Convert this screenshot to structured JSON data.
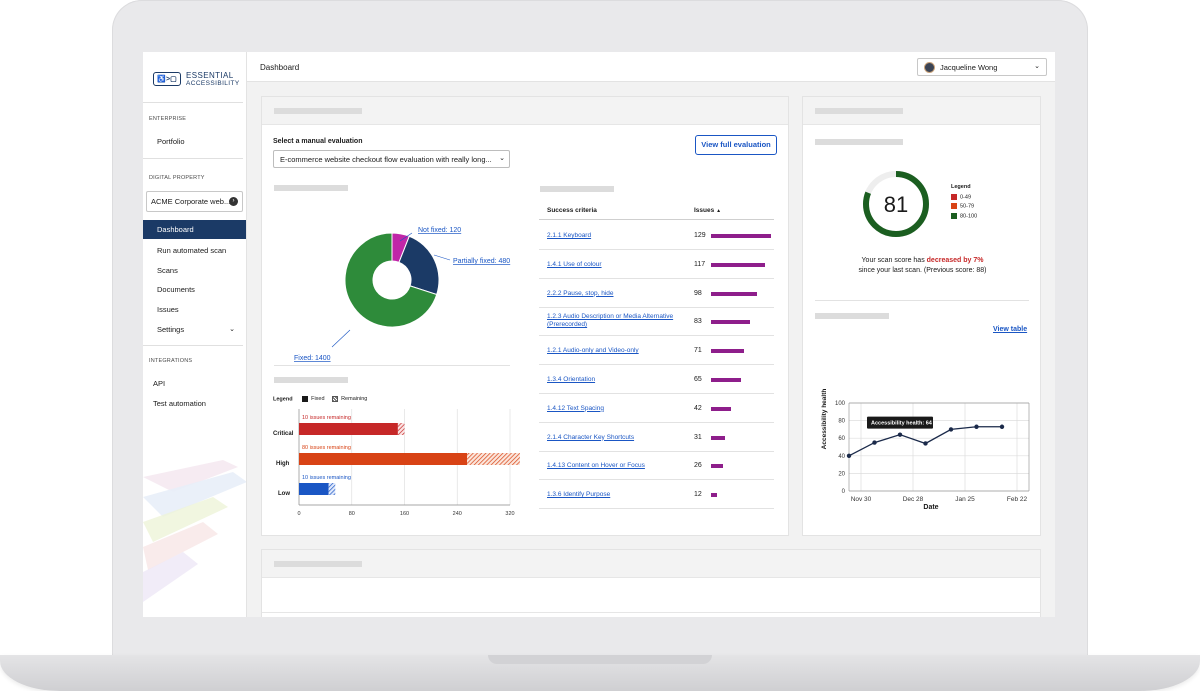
{
  "sidebar": {
    "logo_text_1": "ESSENTIAL",
    "logo_text_2": "ACCESSIBILITY",
    "logo_mark": "♿>▢",
    "section_enterprise": "ENTERPRISE",
    "portfolio": "Portfolio",
    "section_digital_property": "DIGITAL PROPERTY",
    "property_select": "ACME Corporate web...",
    "property_select_icon": "chevron-right-circle-icon",
    "items": [
      {
        "label": "Dashboard",
        "active": true
      },
      {
        "label": "Run automated scan"
      },
      {
        "label": "Scans"
      },
      {
        "label": "Documents"
      },
      {
        "label": "Issues"
      },
      {
        "label": "Settings"
      }
    ],
    "section_integrations": "INTEGRATIONS",
    "integrations": [
      {
        "label": "API"
      },
      {
        "label": "Test automation"
      }
    ]
  },
  "header": {
    "title": "Dashboard",
    "user_name": "Jacqueline Wong"
  },
  "evaluation": {
    "select_label": "Select a manual evaluation",
    "select_value": "E-commerce website checkout flow evaluation with really long...",
    "view_button": "View full evaluation"
  },
  "donut": {
    "chart_data": {
      "type": "pie",
      "categories": [
        "Not fixed",
        "Partially fixed",
        "Fixed"
      ],
      "values": [
        120,
        480,
        1400
      ],
      "labels": [
        "Not fixed: 120",
        "Partially fixed: 480",
        "Fixed: 1400"
      ]
    }
  },
  "bar_chart": {
    "legend_label": "Legend",
    "legend_fixed": "Fixed",
    "legend_remaining": "Remaining",
    "chart_data": {
      "type": "bar",
      "categories": [
        "Critical",
        "High",
        "Low"
      ],
      "series": [
        {
          "name": "Fixed",
          "values": [
            150,
            255,
            45
          ]
        },
        {
          "name": "Remaining",
          "values": [
            10,
            80,
            10
          ]
        }
      ],
      "annotations": [
        "10 issues remaining",
        "80 issues remaining",
        "10 issues remaining"
      ],
      "x_ticks": [
        "0",
        "80",
        "160",
        "240",
        "320"
      ],
      "xlim": [
        0,
        320
      ]
    }
  },
  "criteria_table": {
    "col_criteria": "Success criteria",
    "col_issues": "Issues",
    "sort_icon": "sort-up-icon",
    "rows": [
      {
        "criteria": "2.1.1 Keyboard",
        "issues": "129"
      },
      {
        "criteria": "1.4.1 Use of colour",
        "issues": "117"
      },
      {
        "criteria": "2.2.2 Pause, stop, hide",
        "issues": "98"
      },
      {
        "criteria": "1.2.3 Audio Description or Media Alternative (Prerecorded)",
        "issues": "83"
      },
      {
        "criteria": "1.2.1 Audio-only and Video-only",
        "issues": "71"
      },
      {
        "criteria": "1.3.4 Orientation",
        "issues": "65"
      },
      {
        "criteria": "1.4.12 Text Spacing",
        "issues": "42"
      },
      {
        "criteria": "2.1.4 Character Key Shortcuts",
        "issues": "31"
      },
      {
        "criteria": "1.4.13 Content on Hover or Focus",
        "issues": "26"
      },
      {
        "criteria": "1.3.6 Identify Purpose",
        "issues": "12"
      }
    ]
  },
  "score": {
    "value": "81",
    "legend_title": "Legend",
    "legend_items": [
      {
        "label": "0-49",
        "color": "#c62828"
      },
      {
        "label": "50-79",
        "color": "#d84315"
      },
      {
        "label": "80-100",
        "color": "#1b5e20"
      }
    ],
    "text_pre": "Your scan score has ",
    "text_change": "decreased by 7%",
    "text_post": "since your last scan. (Previous score: 88)"
  },
  "health_chart": {
    "view_table": "View table",
    "tooltip": "Accessibility health: 64",
    "chart_data": {
      "type": "line",
      "ylabel": "Accessibility health",
      "xlabel": "Date",
      "x_ticks": [
        "Nov 30",
        "Dec 28",
        "Jan 25",
        "Feb 22"
      ],
      "y_ticks": [
        "0",
        "20",
        "40",
        "60",
        "80",
        "100"
      ],
      "ylim": [
        0,
        100
      ],
      "values": [
        40,
        55,
        64,
        54,
        70,
        73,
        73
      ]
    }
  }
}
